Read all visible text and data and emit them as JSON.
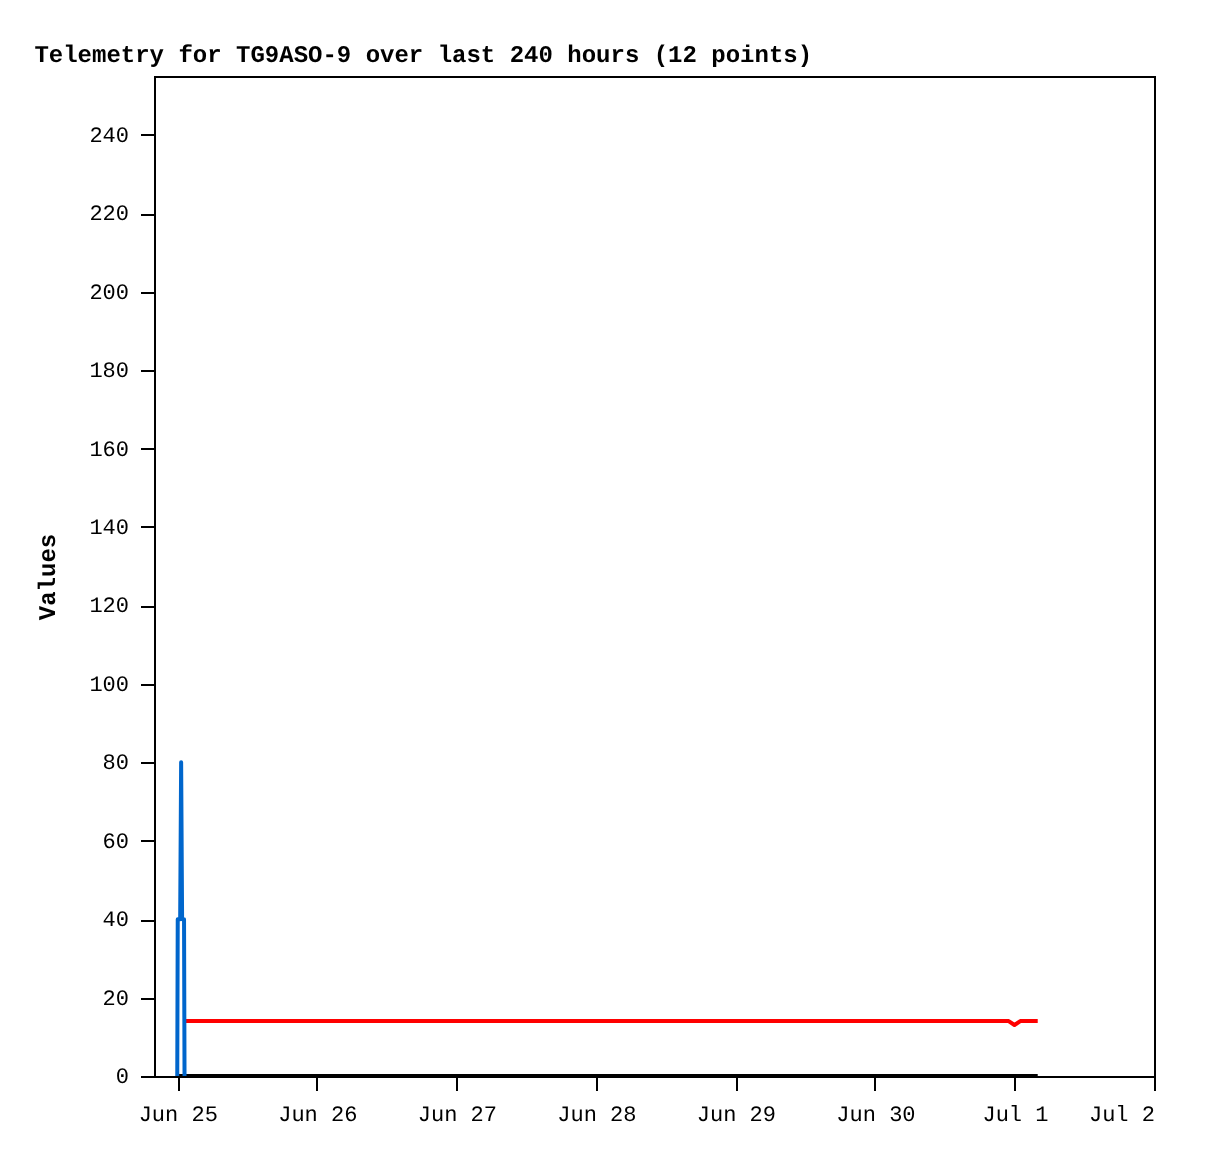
{
  "chart_data": {
    "type": "line",
    "title": "Telemetry for TG9ASO-9 over last 240 hours (12 points)",
    "ylabel": "Values",
    "xlim": [
      "--06-24T20:00",
      "--07-02"
    ],
    "xticks": [
      {
        "value": "--06-25",
        "label": "Jun 25"
      },
      {
        "value": "--06-26",
        "label": "Jun 26"
      },
      {
        "value": "--06-27",
        "label": "Jun 27"
      },
      {
        "value": "--06-28",
        "label": "Jun 28"
      },
      {
        "value": "--06-29",
        "label": "Jun 29"
      },
      {
        "value": "--06-30",
        "label": "Jun 30"
      },
      {
        "value": "--07-01",
        "label": "Jul 1"
      },
      {
        "value": "--07-02",
        "label": "Jul 2"
      }
    ],
    "ylim": [
      0,
      255
    ],
    "yticks": [
      0,
      20,
      40,
      60,
      80,
      100,
      120,
      140,
      160,
      180,
      200,
      220,
      240
    ],
    "grid": false,
    "legend": false,
    "marker": "none",
    "line_style": "solid",
    "series": [
      {
        "color": "#000000",
        "x": [
          "--06-25T00:00",
          "--07-01T04:00"
        ],
        "values": [
          0,
          0
        ]
      },
      {
        "color": "#ff0000",
        "x": [
          "--06-25T01:00",
          "--06-30T23:00",
          "--07-01T00:00",
          "--07-01T01:00",
          "--07-01T04:00"
        ],
        "values": [
          14,
          14,
          13,
          14,
          14
        ]
      },
      {
        "color": "#0066cc",
        "x": [
          "--06-25T00:00",
          "--06-25T00:05",
          "--06-25T00:30",
          "--06-25T00:40",
          "--06-25T00:50",
          "--06-25T01:10",
          "--06-25T01:15"
        ],
        "values": [
          0,
          40,
          40,
          80,
          40,
          40,
          0
        ]
      }
    ]
  }
}
